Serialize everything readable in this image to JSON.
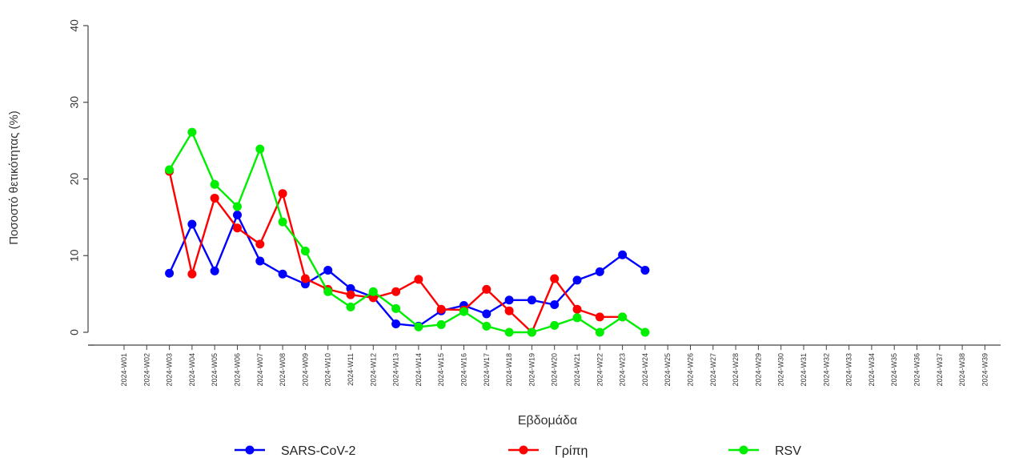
{
  "chart_data": {
    "type": "line",
    "xlabel": "Εβδομάδα",
    "ylabel": "Ποσοστό θετικότητας (%)",
    "ylim": [
      0,
      40
    ],
    "yticks": [
      0,
      10,
      20,
      30,
      40
    ],
    "grid": false,
    "legend_position": "bottom",
    "categories": [
      "2024-W01",
      "2024-W02",
      "2024-W03",
      "2024-W04",
      "2024-W05",
      "2024-W06",
      "2024-W07",
      "2024-W08",
      "2024-W09",
      "2024-W10",
      "2024-W11",
      "2024-W12",
      "2024-W13",
      "2024-W14",
      "2024-W15",
      "2024-W16",
      "2024-W17",
      "2024-W18",
      "2024-W19",
      "2024-W20",
      "2024-W21",
      "2024-W22",
      "2024-W23",
      "2024-W24",
      "2024-W25",
      "2024-W26",
      "2024-W27",
      "2024-W28",
      "2024-W29",
      "2024-W30",
      "2024-W31",
      "2024-W32",
      "2024-W33",
      "2024-W34",
      "2024-W35",
      "2024-W36",
      "2024-W37",
      "2024-W38",
      "2024-W39"
    ],
    "series": [
      {
        "name": "SARS-CoV-2",
        "color": "#0000ff",
        "values": [
          null,
          null,
          7.7,
          14.1,
          8.0,
          15.3,
          9.3,
          7.6,
          6.3,
          8.1,
          5.7,
          4.6,
          1.1,
          0.8,
          2.8,
          3.5,
          2.4,
          4.2,
          4.2,
          3.6,
          6.8,
          7.9,
          10.1,
          8.1,
          null,
          null,
          null,
          null,
          null,
          null,
          null,
          null,
          null,
          null,
          null,
          null,
          null,
          null,
          null
        ]
      },
      {
        "name": "Γρίπη",
        "color": "#ff0000",
        "values": [
          null,
          null,
          21.0,
          7.6,
          17.5,
          13.6,
          11.5,
          18.1,
          7.0,
          5.6,
          4.9,
          4.5,
          5.3,
          6.9,
          3.0,
          2.9,
          5.6,
          2.8,
          0.0,
          7.0,
          3.0,
          2.0,
          2.0,
          null,
          null,
          null,
          null,
          null,
          null,
          null,
          null,
          null,
          null,
          null,
          null,
          null,
          null,
          null,
          null
        ]
      },
      {
        "name": "RSV",
        "color": "#00ee00",
        "values": [
          null,
          null,
          21.2,
          26.1,
          19.3,
          16.4,
          23.9,
          14.4,
          10.6,
          5.3,
          3.3,
          5.3,
          3.1,
          0.7,
          1.0,
          2.7,
          0.8,
          0.0,
          0.0,
          0.9,
          1.9,
          0.0,
          2.0,
          0.0,
          null,
          null,
          null,
          null,
          null,
          null,
          null,
          null,
          null,
          null,
          null,
          null,
          null,
          null,
          null
        ]
      }
    ]
  }
}
